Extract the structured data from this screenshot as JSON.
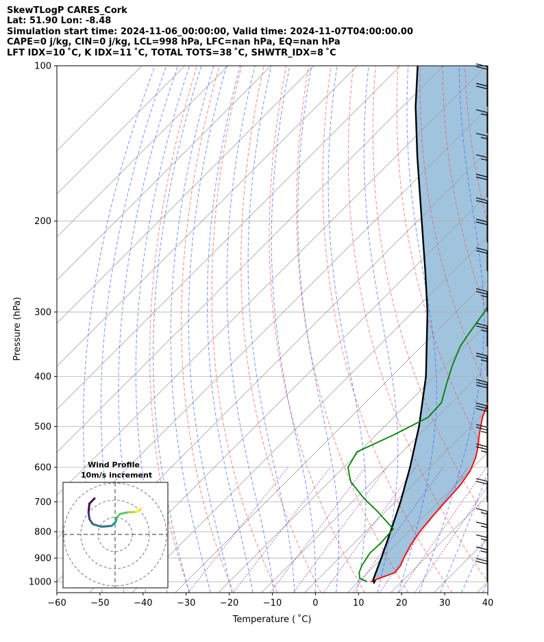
{
  "header": {
    "line1": "SkewTLogP CARES_Cork",
    "line2": "Lat: 51.90   Lon: -8.48",
    "line3": "Simulation start time: 2024-11-06_00:00:00, Valid time: 2024-11-07T04:00:00.00",
    "line4": "CAPE=0 j/kg, CIN=0 j/kg, LCL=998 hPa, LFC=nan hPa, EQ=nan hPa",
    "line5": "LFT IDX=10 ˚C, K IDX=11 ˚C, TOTAL TOTS=38 ˚C, SHWTR_IDX=8 ˚C"
  },
  "chart_data": {
    "type": "line",
    "xlabel": "Temperature ( ˚C)",
    "ylabel": "Pressure (hPa)",
    "xlim": [
      -60,
      40
    ],
    "ylim": [
      1050,
      100
    ],
    "y_scale": "log",
    "x_ticks": [
      -60,
      -50,
      -40,
      -30,
      -20,
      -10,
      0,
      10,
      20,
      30,
      40
    ],
    "y_ticks": [
      100,
      200,
      300,
      400,
      500,
      600,
      700,
      800,
      900,
      1000
    ],
    "grid": true,
    "colors": {
      "temperature": "#ff0000",
      "dewpoint": "#008000",
      "parcel": "#000000",
      "shading": "#a0c4de",
      "dry_adiabats": "#ff4040",
      "moist_adiabats": "#3355ff",
      "mixing_ratio": "#9030c0",
      "isotherms": "#a0a0a0"
    },
    "series": [
      {
        "key": "temperature",
        "points": [
          [
            1000,
            12.8
          ],
          [
            985,
            14.0
          ],
          [
            960,
            16.3
          ],
          [
            930,
            16.0
          ],
          [
            900,
            15.0
          ],
          [
            850,
            13.6
          ],
          [
            800,
            12.6
          ],
          [
            750,
            12.0
          ],
          [
            700,
            11.6
          ],
          [
            650,
            11.2
          ],
          [
            610,
            10.2
          ],
          [
            575,
            8.4
          ],
          [
            550,
            6.6
          ],
          [
            520,
            4.0
          ],
          [
            480,
            0.6
          ],
          [
            440,
            -2.2
          ],
          [
            410,
            -4.0
          ],
          [
            380,
            -6.6
          ],
          [
            350,
            -9.6
          ],
          [
            320,
            -12.6
          ],
          [
            290,
            -15.6
          ],
          [
            265,
            -18.2
          ],
          [
            250,
            -19.8
          ],
          [
            235,
            -20.8
          ],
          [
            215,
            -23.4
          ],
          [
            196,
            -26.2
          ],
          [
            182,
            -27.8
          ],
          [
            172,
            -26.4
          ],
          [
            165,
            -22.8
          ],
          [
            155,
            -19.8
          ],
          [
            145,
            -19.2
          ],
          [
            135,
            -19.6
          ],
          [
            125,
            -20.2
          ],
          [
            115,
            -21.2
          ],
          [
            106,
            -23.2
          ],
          [
            100,
            -25.2
          ]
        ]
      },
      {
        "key": "dewpoint",
        "points": [
          [
            1000,
            12.0
          ],
          [
            985,
            9.5
          ],
          [
            960,
            8.0
          ],
          [
            930,
            7.0
          ],
          [
            880,
            6.0
          ],
          [
            840,
            6.2
          ],
          [
            790,
            5.8
          ],
          [
            730,
            -2.0
          ],
          [
            690,
            -8.0
          ],
          [
            640,
            -15.0
          ],
          [
            620,
            -17.0
          ],
          [
            600,
            -19.0
          ],
          [
            560,
            -20.5
          ],
          [
            520,
            -16.0
          ],
          [
            480,
            -12.0
          ],
          [
            450,
            -12.3
          ],
          [
            410,
            -15.8
          ],
          [
            380,
            -18.5
          ],
          [
            350,
            -21.0
          ],
          [
            330,
            -22.0
          ],
          [
            300,
            -23.4
          ],
          [
            280,
            -24.5
          ],
          [
            270,
            -25.3
          ],
          [
            257,
            -25.6
          ],
          [
            236,
            -24.4
          ],
          [
            210,
            -27.6
          ],
          [
            200,
            -29.0
          ],
          [
            185,
            -29.5
          ],
          [
            175,
            -30.6
          ],
          [
            165,
            -30.0
          ],
          [
            160,
            -27.8
          ],
          [
            150,
            -27.4
          ],
          [
            140,
            -27.4
          ],
          [
            132,
            -28.7
          ],
          [
            122,
            -29.0
          ],
          [
            115,
            -28.0
          ],
          [
            108,
            -26.6
          ],
          [
            100,
            -25.8
          ]
        ]
      },
      {
        "key": "parcel",
        "points": [
          [
            1000,
            13.6
          ],
          [
            990,
            12.9
          ],
          [
            900,
            9.8
          ],
          [
            800,
            5.8
          ],
          [
            700,
            1.2
          ],
          [
            600,
            -4.6
          ],
          [
            500,
            -12.0
          ],
          [
            400,
            -22.0
          ],
          [
            300,
            -36.6
          ],
          [
            250,
            -46.6
          ],
          [
            200,
            -59.0
          ],
          [
            150,
            -75.0
          ],
          [
            120,
            -87.0
          ],
          [
            100,
            -96.0
          ]
        ]
      }
    ],
    "wind_barbs": [
      {
        "p": 1000,
        "kt": 20
      },
      {
        "p": 950,
        "kt": 15
      },
      {
        "p": 900,
        "kt": 15
      },
      {
        "p": 850,
        "kt": 15
      },
      {
        "p": 800,
        "kt": 15
      },
      {
        "p": 700,
        "kt": 20
      },
      {
        "p": 600,
        "kt": 25
      },
      {
        "p": 550,
        "kt": 25
      },
      {
        "p": 500,
        "kt": 30
      },
      {
        "p": 450,
        "kt": 30
      },
      {
        "p": 400,
        "kt": 25
      },
      {
        "p": 350,
        "kt": 25
      },
      {
        "p": 300,
        "kt": 25
      },
      {
        "p": 250,
        "kt": 20
      },
      {
        "p": 220,
        "kt": 20
      },
      {
        "p": 200,
        "kt": 20
      },
      {
        "p": 180,
        "kt": 20
      },
      {
        "p": 165,
        "kt": 15
      },
      {
        "p": 150,
        "kt": 15
      },
      {
        "p": 135,
        "kt": 15
      },
      {
        "p": 120,
        "kt": 20
      },
      {
        "p": 110,
        "kt": 20
      }
    ],
    "inset": {
      "title_line1": "Wind Profile",
      "title_line2": "10m/s increment",
      "rings": 3,
      "hodograph": [
        [
          -1.2,
          -2.1
        ],
        [
          -1.5,
          -1.8
        ],
        [
          -1.55,
          -1.3
        ],
        [
          -1.5,
          -0.9
        ],
        [
          -1.3,
          -0.6
        ],
        [
          -0.8,
          -0.45
        ],
        [
          -0.2,
          -0.5
        ],
        [
          0.05,
          -0.75
        ],
        [
          0.1,
          -1.0
        ],
        [
          0.3,
          -1.2
        ],
        [
          0.8,
          -1.3
        ],
        [
          1.2,
          -1.3
        ],
        [
          1.5,
          -1.5
        ]
      ]
    }
  }
}
